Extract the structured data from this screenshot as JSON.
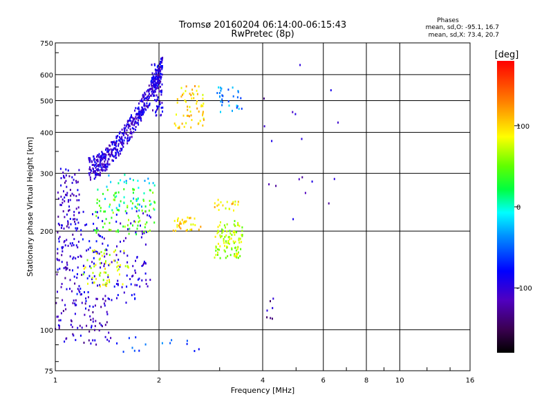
{
  "chart_data": {
    "type": "scatter",
    "title": "Tromsø 20160204 06:14:00-06:15:43",
    "subtitle": "RwPretec (8p)",
    "xlabel": "Frequency [MHz]",
    "ylabel": "Stationary phase Virtual Height [km]",
    "x_scale": "log",
    "y_scale": "log",
    "xlim": [
      1,
      16
    ],
    "ylim": [
      75,
      750
    ],
    "x_ticks": [
      1,
      2,
      4,
      6,
      8,
      10,
      16
    ],
    "x_tick_labels": [
      "1",
      "2",
      "4",
      "6",
      "8",
      "10",
      "16"
    ],
    "y_ticks": [
      75,
      100,
      200,
      300,
      400,
      500,
      600,
      750
    ],
    "y_tick_labels": [
      "75",
      "100",
      "200",
      "300",
      "400",
      "500",
      "600",
      "750"
    ],
    "grid": true,
    "stats": {
      "heading": "Phases",
      "line_o": "mean, sd,O: -95.1, 16.7",
      "line_x": "mean, sd,X:  73.4, 20.7"
    },
    "colorbar": {
      "label": "[deg]",
      "range": [
        -180,
        180
      ],
      "ticks": [
        100,
        0,
        -100
      ],
      "tick_labels": [
        "100",
        "0",
        "-100"
      ]
    },
    "regions": [
      {
        "fmin": 1.25,
        "fmax": 2.05,
        "hmin": 310,
        "hmax": 640,
        "phase": -100,
        "n": 500,
        "trace": true
      },
      {
        "fmin": 1.9,
        "fmax": 2.05,
        "hmin": 450,
        "hmax": 650,
        "phase": -95,
        "n": 80
      },
      {
        "fmin": 2.2,
        "fmax": 2.7,
        "hmin": 410,
        "hmax": 560,
        "phase": 100,
        "n": 60
      },
      {
        "fmin": 2.95,
        "fmax": 3.5,
        "hmin": 460,
        "hmax": 550,
        "phase": -40,
        "n": 30
      },
      {
        "fmin": 1.0,
        "fmax": 1.18,
        "hmin": 130,
        "hmax": 310,
        "phase": -105,
        "n": 140
      },
      {
        "fmin": 1.12,
        "fmax": 1.9,
        "hmin": 120,
        "hmax": 230,
        "phase": -95,
        "n": 160
      },
      {
        "fmin": 1.18,
        "fmax": 1.65,
        "hmin": 135,
        "hmax": 175,
        "phase": 75,
        "n": 60
      },
      {
        "fmin": 1.3,
        "fmax": 1.95,
        "hmin": 195,
        "hmax": 270,
        "phase": 45,
        "n": 90
      },
      {
        "fmin": 1.3,
        "fmax": 1.95,
        "hmin": 230,
        "hmax": 300,
        "phase": -15,
        "n": 40
      },
      {
        "fmin": 2.2,
        "fmax": 2.65,
        "hmin": 200,
        "hmax": 220,
        "phase": 100,
        "n": 35
      },
      {
        "fmin": 2.9,
        "fmax": 3.5,
        "hmin": 165,
        "hmax": 215,
        "phase": 70,
        "n": 110
      },
      {
        "fmin": 2.9,
        "fmax": 3.4,
        "hmin": 230,
        "hmax": 250,
        "phase": 95,
        "n": 20
      },
      {
        "fmin": 1.0,
        "fmax": 1.45,
        "hmin": 90,
        "hmax": 125,
        "phase": -110,
        "n": 80
      },
      {
        "fmin": 1.5,
        "fmax": 2.7,
        "hmin": 85,
        "hmax": 95,
        "phase": -60,
        "n": 15
      },
      {
        "fmin": 4.0,
        "fmax": 7.0,
        "hmin": 210,
        "hmax": 650,
        "phase": -110,
        "n": 18
      },
      {
        "fmin": 4.1,
        "fmax": 4.3,
        "hmin": 105,
        "hmax": 125,
        "phase": -120,
        "n": 7
      }
    ]
  }
}
